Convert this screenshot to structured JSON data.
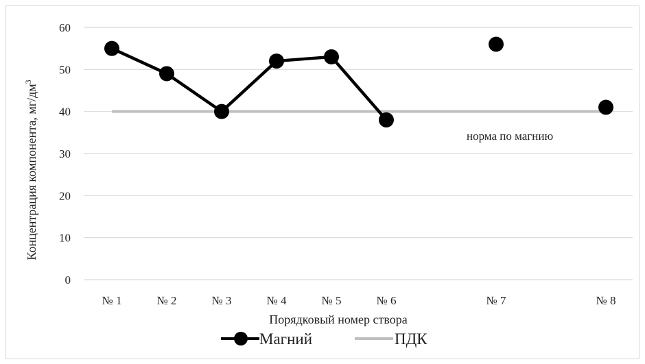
{
  "chart_data": {
    "type": "line",
    "categories": [
      "№ 1",
      "№ 2",
      "№ 3",
      "№ 4",
      "№ 5",
      "№ 6",
      "№ 7",
      "№ 8"
    ],
    "x_positions": [
      1,
      2,
      3,
      4,
      5,
      6,
      8,
      10
    ],
    "series": [
      {
        "name": "Магний",
        "values": [
          55,
          49,
          40,
          52,
          53,
          38,
          56,
          41
        ],
        "connected_segments": [
          [
            0,
            5
          ]
        ],
        "color": "#000000",
        "marker": "circle"
      },
      {
        "name": "ПДК",
        "values": [
          40,
          40,
          40,
          40,
          40,
          40,
          40,
          40
        ],
        "color": "#bfbfbf",
        "marker": "none"
      }
    ],
    "yticks": [
      "0",
      "10",
      "20",
      "30",
      "40",
      "50",
      "60"
    ],
    "ylim": [
      0,
      60
    ],
    "xlabel": "Порядковый номер створа",
    "ylabel": "Концентрация компонента, мг/дм",
    "ylabel_superscript": "3",
    "annotation": "норма по магнию",
    "grid": true,
    "legend_position": "bottom"
  }
}
